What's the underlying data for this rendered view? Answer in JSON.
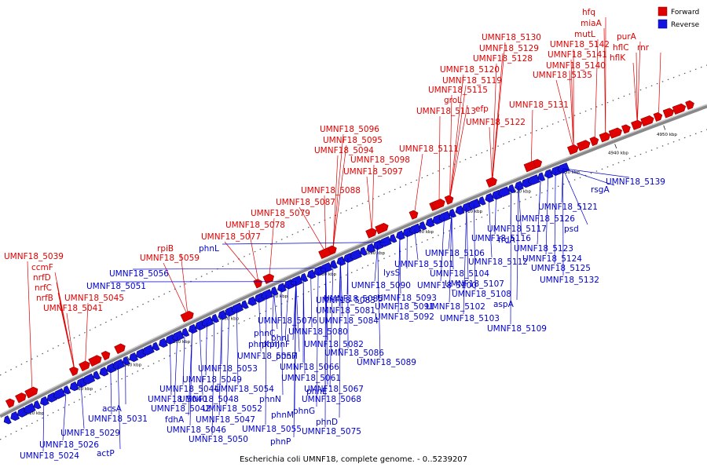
{
  "caption": "Escherichia coli UMNF18, complete genome. - 0..5239207",
  "legend": {
    "forward": "Forward",
    "reverse": "Reverse"
  },
  "colors": {
    "forward": "#e00000",
    "reverse": "#1414e0",
    "backbone": "#888888"
  },
  "ticks": [
    "4820 kbp",
    "4830 kbp",
    "4840 kbp",
    "4850 kbp",
    "4860 kbp",
    "4870 kbp",
    "4880 kbp",
    "4890 kbp",
    "4900 kbp",
    "4910 kbp",
    "4920 kbp",
    "4930 kbp",
    "4940 kbp",
    "4950 kbp"
  ],
  "forward_genes": [
    "UMNF18_5039",
    "ccmF",
    "nrfD",
    "nrfC",
    "nrfB",
    "UMNF18_5045",
    "UMNF18_5041",
    "rpiB",
    "UMNF18_5059",
    "UMNF18_5077",
    "UMNF18_5078",
    "UMNF18_5079",
    "UMNF18_5087",
    "UMNF18_5088",
    "UMNF18_5096",
    "UMNF18_5095",
    "UMNF18_5094",
    "UMNF18_5097",
    "UMNF18_5098",
    "UMNF18_5111",
    "UMNF18_5113",
    "groL",
    "UMNF18_5115",
    "efp",
    "UMNF18_5119",
    "UMNF18_5120",
    "UMNF18_5122",
    "UMNF18_5128",
    "UMNF18_5129",
    "UMNF18_5130",
    "UMNF18_5131",
    "UMNF18_5135",
    "UMNF18_5140",
    "UMNF18_5141",
    "UMNF18_5142",
    "mutL",
    "miaA",
    "hfq",
    "hflC",
    "hflK",
    "purA",
    "rnr"
  ],
  "reverse_genes": [
    "UMNF18_5024",
    "UMNF18_5026",
    "actP",
    "UMNF18_5029",
    "acsA",
    "UMNF18_5031",
    "fdhA",
    "UMNF18_5040",
    "UMNF18_5042",
    "UMNF18_5044",
    "UMNF18_5046",
    "UMNF18_5047",
    "UMNF18_5048",
    "UMNF18_5049",
    "UMNF18_5050",
    "UMNF18_5051",
    "UMNF18_5052",
    "UMNF18_5053",
    "UMNF18_5054",
    "UMNF18_5055",
    "UMNF18_5056",
    "UMNF18_5057",
    "phnL",
    "phnK",
    "phnJ",
    "phnI",
    "phnH",
    "phnG",
    "phnF",
    "phnE",
    "phnD",
    "phnC",
    "phnM",
    "phnN",
    "phnP",
    "UMNF18_5061",
    "UMNF18_5066",
    "UMNF18_5067",
    "UMNF18_5068",
    "UMNF18_5075",
    "UMNF18_5076",
    "UMNF18_5080",
    "UMNF18_5081",
    "UMNF18_5082",
    "UMNF18_5083",
    "UMNF18_5084",
    "UMNF18_5085",
    "UMNF18_5086",
    "UMNF18_5089",
    "UMNF18_5090",
    "UMNF18_5091",
    "UMNF18_5092",
    "UMNF18_5093",
    "lysS",
    "UMNF18_5100",
    "UMNF18_5101",
    "UMNF18_5102",
    "UMNF18_5103",
    "UMNF18_5104",
    "UMNF18_5106",
    "UMNF18_5107",
    "UMNF18_5108",
    "UMNF18_5109",
    "UMNF18_5112",
    "aspA",
    "UMNF18_5116",
    "UMNF18_5117",
    "frdA",
    "UMNF18_5121",
    "UMNF18_5123",
    "UMNF18_5124",
    "UMNF18_5125",
    "UMNF18_5126",
    "UMNF18_5132",
    "psd",
    "rsgA",
    "UMNF18_5139"
  ],
  "labels": [
    {
      "t": "UMNF18_5039",
      "s": "f"
    },
    {
      "t": "ccmF",
      "s": "f"
    },
    {
      "t": "nrfD",
      "s": "f"
    },
    {
      "t": "nrfC",
      "s": "f"
    },
    {
      "t": "nrfB",
      "s": "f"
    },
    {
      "t": "UMNF18_5045",
      "s": "f"
    },
    {
      "t": "UMNF18_5041",
      "s": "f"
    },
    {
      "t": "rpiB",
      "s": "f"
    },
    {
      "t": "UMNF18_5059",
      "s": "f"
    },
    {
      "t": "UMNF18_5077",
      "s": "f"
    },
    {
      "t": "UMNF18_5078",
      "s": "f"
    },
    {
      "t": "UMNF18_5079",
      "s": "f"
    },
    {
      "t": "UMNF18_5087",
      "s": "f"
    },
    {
      "t": "UMNF18_5088",
      "s": "f"
    },
    {
      "t": "UMNF18_5096",
      "s": "f"
    },
    {
      "t": "UMNF18_5095",
      "s": "f"
    },
    {
      "t": "UMNF18_5094",
      "s": "f"
    },
    {
      "t": "UMNF18_5097",
      "s": "f"
    },
    {
      "t": "UMNF18_5098",
      "s": "f"
    },
    {
      "t": "UMNF18_5111",
      "s": "f"
    },
    {
      "t": "UMNF18_5113",
      "s": "f"
    },
    {
      "t": "groL",
      "s": "f"
    },
    {
      "t": "UMNF18_5115",
      "s": "f"
    },
    {
      "t": "efp",
      "s": "f"
    },
    {
      "t": "UMNF18_5119",
      "s": "f"
    },
    {
      "t": "UMNF18_5120",
      "s": "f"
    },
    {
      "t": "UMNF18_5122",
      "s": "f"
    },
    {
      "t": "UMNF18_5128",
      "s": "f"
    },
    {
      "t": "UMNF18_5129",
      "s": "f"
    },
    {
      "t": "UMNF18_5130",
      "s": "f"
    },
    {
      "t": "UMNF18_5131",
      "s": "f"
    },
    {
      "t": "UMNF18_5135",
      "s": "f"
    },
    {
      "t": "UMNF18_5140",
      "s": "f"
    },
    {
      "t": "UMNF18_5141",
      "s": "f"
    },
    {
      "t": "UMNF18_5142",
      "s": "f"
    },
    {
      "t": "mutL",
      "s": "f"
    },
    {
      "t": "miaA",
      "s": "f"
    },
    {
      "t": "hfq",
      "s": "f"
    },
    {
      "t": "hflC",
      "s": "f"
    },
    {
      "t": "hflK",
      "s": "f"
    },
    {
      "t": "purA",
      "s": "f"
    },
    {
      "t": "rnr",
      "s": "f"
    },
    {
      "t": "UMNF18_5024",
      "s": "r"
    },
    {
      "t": "UMNF18_5026",
      "s": "r"
    },
    {
      "t": "actP",
      "s": "r"
    },
    {
      "t": "UMNF18_5029",
      "s": "r"
    },
    {
      "t": "acsA",
      "s": "r"
    },
    {
      "t": "UMNF18_5031",
      "s": "r"
    },
    {
      "t": "fdhA",
      "s": "r"
    },
    {
      "t": "UMNF18_5040",
      "s": "r"
    },
    {
      "t": "UMNF18_5042",
      "s": "r"
    },
    {
      "t": "UMNF18_5044",
      "s": "r"
    },
    {
      "t": "UMNF18_5046",
      "s": "r"
    },
    {
      "t": "UMNF18_5047",
      "s": "r"
    },
    {
      "t": "UMNF18_5048",
      "s": "r"
    },
    {
      "t": "UMNF18_5049",
      "s": "r"
    },
    {
      "t": "UMNF18_5050",
      "s": "r"
    },
    {
      "t": "UMNF18_5051",
      "s": "r"
    },
    {
      "t": "UMNF18_5052",
      "s": "r"
    },
    {
      "t": "UMNF18_5053",
      "s": "r"
    },
    {
      "t": "UMNF18_5054",
      "s": "r"
    },
    {
      "t": "UMNF18_5055",
      "s": "r"
    },
    {
      "t": "UMNF18_5056",
      "s": "r"
    },
    {
      "t": "UMNF18_5057",
      "s": "r"
    },
    {
      "t": "phnL",
      "s": "r"
    },
    {
      "t": "phnK",
      "s": "r"
    },
    {
      "t": "phnJ",
      "s": "r"
    },
    {
      "t": "phnI",
      "s": "r"
    },
    {
      "t": "phnH",
      "s": "r"
    },
    {
      "t": "phnG",
      "s": "r"
    },
    {
      "t": "phnF",
      "s": "r"
    },
    {
      "t": "phnE",
      "s": "r"
    },
    {
      "t": "phnD",
      "s": "r"
    },
    {
      "t": "phnC",
      "s": "r"
    },
    {
      "t": "phnM",
      "s": "r"
    },
    {
      "t": "phnN",
      "s": "r"
    },
    {
      "t": "phnP",
      "s": "r"
    },
    {
      "t": "UMNF18_5061",
      "s": "r"
    },
    {
      "t": "UMNF18_5066",
      "s": "r"
    },
    {
      "t": "UMNF18_5067",
      "s": "r"
    },
    {
      "t": "UMNF18_5068",
      "s": "r"
    },
    {
      "t": "UMNF18_5075",
      "s": "r"
    },
    {
      "t": "UMNF18_5076",
      "s": "r"
    },
    {
      "t": "UMNF18_5080",
      "s": "r"
    },
    {
      "t": "UMNF18_5081",
      "s": "r"
    },
    {
      "t": "UMNF18_5082",
      "s": "r"
    },
    {
      "t": "UMNF18_5083",
      "s": "r"
    },
    {
      "t": "UMNF18_5084",
      "s": "r"
    },
    {
      "t": "UMNF18_5085",
      "s": "r"
    },
    {
      "t": "UMNF18_5086",
      "s": "r"
    },
    {
      "t": "UMNF18_5089",
      "s": "r"
    },
    {
      "t": "UMNF18_5090",
      "s": "r"
    },
    {
      "t": "UMNF18_5091",
      "s": "r"
    },
    {
      "t": "UMNF18_5092",
      "s": "r"
    },
    {
      "t": "UMNF18_5093",
      "s": "r"
    },
    {
      "t": "lysS",
      "s": "r"
    },
    {
      "t": "UMNF18_5100",
      "s": "r"
    },
    {
      "t": "UMNF18_5101",
      "s": "r"
    },
    {
      "t": "UMNF18_5102",
      "s": "r"
    },
    {
      "t": "UMNF18_5103",
      "s": "r"
    },
    {
      "t": "UMNF18_5104",
      "s": "r"
    },
    {
      "t": "UMNF18_5106",
      "s": "r"
    },
    {
      "t": "UMNF18_5107",
      "s": "r"
    },
    {
      "t": "UMNF18_5108",
      "s": "r"
    },
    {
      "t": "UMNF18_5109",
      "s": "r"
    },
    {
      "t": "UMNF18_5112",
      "s": "r"
    },
    {
      "t": "aspA",
      "s": "r"
    },
    {
      "t": "UMNF18_5116",
      "s": "r"
    },
    {
      "t": "UMNF18_5117",
      "s": "r"
    },
    {
      "t": "frdA",
      "s": "r"
    },
    {
      "t": "UMNF18_5121",
      "s": "r"
    },
    {
      "t": "UMNF18_5123",
      "s": "r"
    },
    {
      "t": "UMNF18_5124",
      "s": "r"
    },
    {
      "t": "UMNF18_5125",
      "s": "r"
    },
    {
      "t": "UMNF18_5126",
      "s": "r"
    },
    {
      "t": "UMNF18_5132",
      "s": "r"
    },
    {
      "t": "psd",
      "s": "r"
    },
    {
      "t": "rsgA",
      "s": "r"
    },
    {
      "t": "UMNF18_5139",
      "s": "r"
    }
  ]
}
